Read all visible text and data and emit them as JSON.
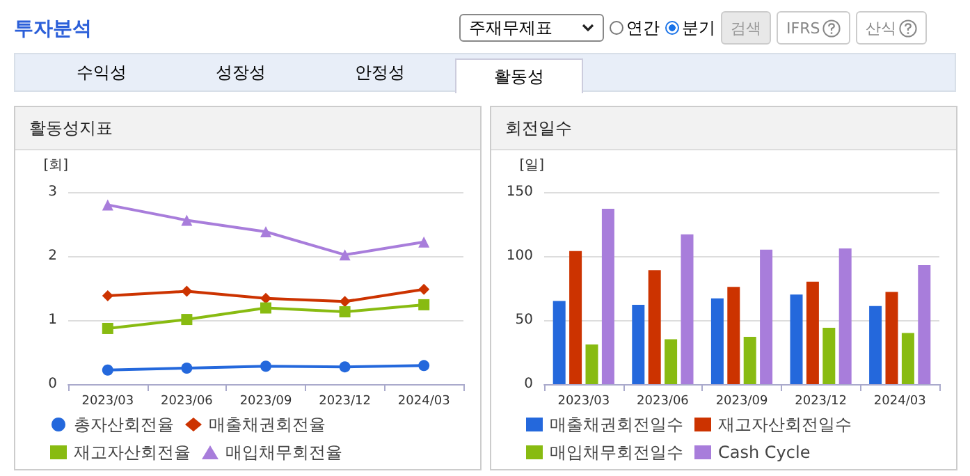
{
  "chart_data": [
    {
      "type": "other",
      "title": "투자분석",
      "annotations": [
        "주재무제표",
        "연간",
        "분기",
        "검색",
        "IFRS",
        "산식",
        "수익성",
        "성장성",
        "안정성",
        "활동성"
      ]
    },
    {
      "type": "line",
      "title": "활동성지표",
      "ylabel": "[회]",
      "categories": [
        "2023/03",
        "2023/06",
        "2023/09",
        "2023/12",
        "2024/03"
      ],
      "ylim": [
        0,
        3
      ],
      "yticks": [
        0,
        1,
        2,
        3
      ],
      "grid": "y",
      "legend": "bottom",
      "series": [
        {
          "name": "총자산회전율",
          "color": "#2468dc",
          "marker": "circle",
          "values": [
            0.22,
            0.25,
            0.28,
            0.27,
            0.29
          ]
        },
        {
          "name": "매출채권회전율",
          "color": "#cc3300",
          "marker": "diamond",
          "values": [
            1.38,
            1.45,
            1.34,
            1.29,
            1.48
          ]
        },
        {
          "name": "재고자산회전율",
          "color": "#88bb11",
          "marker": "square",
          "values": [
            0.87,
            1.01,
            1.19,
            1.13,
            1.24
          ]
        },
        {
          "name": "매입채무회전율",
          "color": "#a87ddb",
          "marker": "triangle",
          "values": [
            2.8,
            2.56,
            2.38,
            2.02,
            2.22
          ]
        }
      ]
    },
    {
      "type": "bar",
      "title": "회전일수",
      "ylabel": "[일]",
      "categories": [
        "2023/03",
        "2023/06",
        "2023/09",
        "2023/12",
        "2024/03"
      ],
      "ylim": [
        0,
        150
      ],
      "yticks": [
        0,
        50,
        100,
        150
      ],
      "grid": "y",
      "legend": "bottom",
      "series": [
        {
          "name": "매출채권회전일수",
          "color": "#2468dc",
          "values": [
            65,
            62,
            67,
            70,
            61
          ]
        },
        {
          "name": "재고자산회전일수",
          "color": "#cc3300",
          "values": [
            104,
            89,
            76,
            80,
            72
          ]
        },
        {
          "name": "매입채무회전일수",
          "color": "#88bb11",
          "values": [
            31,
            35,
            37,
            44,
            40
          ]
        },
        {
          "name": "Cash Cycle",
          "color": "#a87ddb",
          "values": [
            137,
            117,
            105,
            106,
            93
          ]
        }
      ]
    }
  ]
}
